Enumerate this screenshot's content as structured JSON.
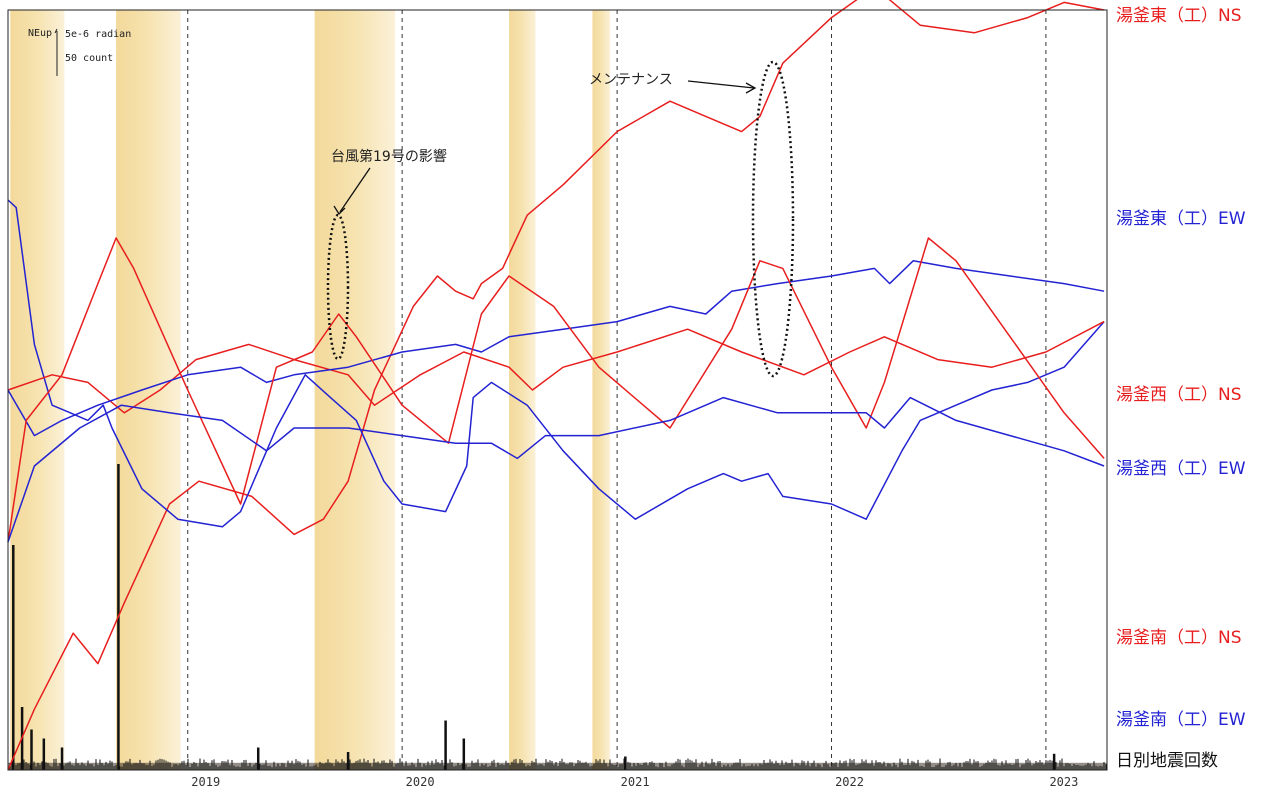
{
  "chart_data": {
    "type": "line",
    "title": "",
    "x_range": [
      "2018-03-01",
      "2023-04-15"
    ],
    "x_ticks": [
      "2019",
      "2020",
      "2021",
      "2022",
      "2023"
    ],
    "scale_bar": {
      "unit_label": "NEup",
      "tilt_label": "5e-6 radian",
      "count_label": "50 count"
    },
    "shaded_periods": [
      [
        "2018-03-05",
        "2018-06-05"
      ],
      [
        "2018-09-01",
        "2018-12-20"
      ],
      [
        "2019-08-05",
        "2019-12-20"
      ],
      [
        "2020-07-01",
        "2020-08-15"
      ],
      [
        "2020-11-20",
        "2020-12-20"
      ]
    ],
    "annotations": [
      {
        "text": "台風第19号の影響",
        "target": "2019-10-12"
      },
      {
        "text": "メンテナンス",
        "target": "2021-09-25"
      }
    ],
    "series": [
      {
        "name": "湯釜東（工）NS",
        "color": "#e81e1e",
        "points": [
          [
            "2018-03-01",
            0.0
          ],
          [
            "2018-04-15",
            0.08
          ],
          [
            "2018-06-20",
            0.18
          ],
          [
            "2018-08-01",
            0.14
          ],
          [
            "2018-09-15",
            0.22
          ],
          [
            "2018-12-01",
            0.35
          ],
          [
            "2019-01-20",
            0.38
          ],
          [
            "2019-04-20",
            0.36
          ],
          [
            "2019-07-01",
            0.31
          ],
          [
            "2019-08-20",
            0.33
          ],
          [
            "2019-10-01",
            0.38
          ],
          [
            "2019-11-15",
            0.5
          ],
          [
            "2020-01-20",
            0.61
          ],
          [
            "2020-03-01",
            0.65
          ],
          [
            "2020-04-01",
            0.63
          ],
          [
            "2020-05-01",
            0.62
          ],
          [
            "2020-05-15",
            0.64
          ],
          [
            "2020-06-20",
            0.66
          ],
          [
            "2020-08-01",
            0.73
          ],
          [
            "2020-10-01",
            0.77
          ],
          [
            "2021-01-01",
            0.84
          ],
          [
            "2021-04-01",
            0.88
          ],
          [
            "2021-06-01",
            0.86
          ],
          [
            "2021-08-01",
            0.84
          ],
          [
            "2021-09-01",
            0.86
          ],
          [
            "2021-10-10",
            0.93
          ],
          [
            "2022-01-01",
            0.99
          ],
          [
            "2022-03-15",
            1.03
          ],
          [
            "2022-06-01",
            0.98
          ],
          [
            "2022-09-01",
            0.97
          ],
          [
            "2022-12-01",
            0.99
          ],
          [
            "2023-02-01",
            1.01
          ],
          [
            "2023-04-10",
            1.0
          ]
        ]
      },
      {
        "name": "湯釜東（工）EW",
        "color": "#2323d3",
        "points": [
          [
            "2018-03-01",
            0.75
          ],
          [
            "2018-03-15",
            0.74
          ],
          [
            "2018-04-15",
            0.56
          ],
          [
            "2018-05-15",
            0.48
          ],
          [
            "2018-06-15",
            0.47
          ],
          [
            "2018-07-15",
            0.46
          ],
          [
            "2018-08-10",
            0.48
          ],
          [
            "2018-08-25",
            0.45
          ],
          [
            "2018-10-15",
            0.37
          ],
          [
            "2018-12-15",
            0.33
          ],
          [
            "2019-03-01",
            0.32
          ],
          [
            "2019-04-01",
            0.34
          ],
          [
            "2019-06-01",
            0.45
          ],
          [
            "2019-07-20",
            0.52
          ],
          [
            "2019-09-01",
            0.49
          ],
          [
            "2019-10-15",
            0.46
          ],
          [
            "2019-12-01",
            0.38
          ],
          [
            "2020-01-01",
            0.35
          ],
          [
            "2020-03-15",
            0.34
          ],
          [
            "2020-04-20",
            0.4
          ],
          [
            "2020-05-01",
            0.49
          ],
          [
            "2020-06-01",
            0.51
          ],
          [
            "2020-08-01",
            0.48
          ],
          [
            "2020-10-01",
            0.42
          ],
          [
            "2020-12-01",
            0.37
          ],
          [
            "2021-02-01",
            0.33
          ],
          [
            "2021-05-01",
            0.37
          ],
          [
            "2021-07-01",
            0.39
          ],
          [
            "2021-08-01",
            0.38
          ],
          [
            "2021-09-15",
            0.39
          ],
          [
            "2021-10-10",
            0.36
          ],
          [
            "2022-01-01",
            0.35
          ],
          [
            "2022-03-01",
            0.33
          ],
          [
            "2022-05-01",
            0.42
          ],
          [
            "2022-06-01",
            0.46
          ],
          [
            "2022-08-01",
            0.48
          ],
          [
            "2022-10-01",
            0.5
          ],
          [
            "2022-12-01",
            0.51
          ],
          [
            "2023-02-01",
            0.53
          ],
          [
            "2023-04-10",
            0.59
          ]
        ]
      },
      {
        "name": "湯釜西（工）NS",
        "color": "#e81e1e",
        "points": [
          [
            "2018-03-01",
            0.5
          ],
          [
            "2018-05-15",
            0.52
          ],
          [
            "2018-07-15",
            0.51
          ],
          [
            "2018-09-15",
            0.47
          ],
          [
            "2018-11-15",
            0.5
          ],
          [
            "2019-01-15",
            0.54
          ],
          [
            "2019-04-15",
            0.56
          ],
          [
            "2019-07-01",
            0.54
          ],
          [
            "2019-10-01",
            0.52
          ],
          [
            "2019-11-15",
            0.48
          ],
          [
            "2020-02-01",
            0.52
          ],
          [
            "2020-04-15",
            0.55
          ],
          [
            "2020-07-01",
            0.53
          ],
          [
            "2020-08-10",
            0.5
          ],
          [
            "2020-10-01",
            0.53
          ],
          [
            "2021-01-01",
            0.55
          ],
          [
            "2021-05-01",
            0.58
          ],
          [
            "2021-08-01",
            0.55
          ],
          [
            "2021-11-15",
            0.52
          ],
          [
            "2022-02-01",
            0.55
          ],
          [
            "2022-04-01",
            0.57
          ],
          [
            "2022-07-01",
            0.54
          ],
          [
            "2022-10-01",
            0.53
          ],
          [
            "2023-01-01",
            0.55
          ],
          [
            "2023-04-10",
            0.59
          ]
        ]
      },
      {
        "name": "湯釜西（工）EW",
        "color": "#2323d3",
        "points": [
          [
            "2018-03-01",
            0.5
          ],
          [
            "2018-04-15",
            0.44
          ],
          [
            "2018-06-01",
            0.46
          ],
          [
            "2018-08-01",
            0.48
          ],
          [
            "2018-10-15",
            0.5
          ],
          [
            "2019-01-01",
            0.52
          ],
          [
            "2019-04-01",
            0.53
          ],
          [
            "2019-05-15",
            0.51
          ],
          [
            "2019-07-01",
            0.52
          ],
          [
            "2019-10-01",
            0.53
          ],
          [
            "2020-01-01",
            0.55
          ],
          [
            "2020-04-01",
            0.56
          ],
          [
            "2020-05-15",
            0.55
          ],
          [
            "2020-07-01",
            0.57
          ],
          [
            "2020-10-01",
            0.58
          ],
          [
            "2021-01-01",
            0.59
          ],
          [
            "2021-04-01",
            0.61
          ],
          [
            "2021-06-01",
            0.6
          ],
          [
            "2021-07-15",
            0.63
          ],
          [
            "2021-10-01",
            0.64
          ],
          [
            "2022-01-01",
            0.65
          ],
          [
            "2022-03-15",
            0.66
          ],
          [
            "2022-04-10",
            0.64
          ],
          [
            "2022-05-20",
            0.67
          ],
          [
            "2022-08-01",
            0.66
          ],
          [
            "2022-11-01",
            0.65
          ],
          [
            "2023-02-01",
            0.64
          ],
          [
            "2023-04-10",
            0.63
          ]
        ]
      },
      {
        "name": "湯釜南（工）NS",
        "color": "#e81e1e",
        "points": [
          [
            "2018-03-01",
            0.3
          ],
          [
            "2018-04-01",
            0.46
          ],
          [
            "2018-06-01",
            0.52
          ],
          [
            "2018-08-01",
            0.64
          ],
          [
            "2018-09-01",
            0.7
          ],
          [
            "2018-10-01",
            0.66
          ],
          [
            "2019-01-01",
            0.5
          ],
          [
            "2019-04-01",
            0.35
          ],
          [
            "2019-06-01",
            0.53
          ],
          [
            "2019-08-01",
            0.55
          ],
          [
            "2019-09-15",
            0.6
          ],
          [
            "2019-10-15",
            0.57
          ],
          [
            "2020-01-01",
            0.48
          ],
          [
            "2020-03-20",
            0.43
          ],
          [
            "2020-05-15",
            0.6
          ],
          [
            "2020-07-01",
            0.65
          ],
          [
            "2020-09-15",
            0.61
          ],
          [
            "2020-12-01",
            0.53
          ],
          [
            "2021-04-01",
            0.45
          ],
          [
            "2021-07-15",
            0.58
          ],
          [
            "2021-09-01",
            0.67
          ],
          [
            "2021-10-10",
            0.66
          ],
          [
            "2022-01-01",
            0.53
          ],
          [
            "2022-03-01",
            0.45
          ],
          [
            "2022-04-01",
            0.51
          ],
          [
            "2022-06-15",
            0.7
          ],
          [
            "2022-08-01",
            0.67
          ],
          [
            "2022-11-01",
            0.57
          ],
          [
            "2023-02-01",
            0.47
          ],
          [
            "2023-04-10",
            0.41
          ]
        ]
      },
      {
        "name": "湯釜南（工）EW",
        "color": "#2323d3",
        "points": [
          [
            "2018-03-01",
            0.3
          ],
          [
            "2018-04-15",
            0.4
          ],
          [
            "2018-07-01",
            0.45
          ],
          [
            "2018-09-10",
            0.48
          ],
          [
            "2018-12-01",
            0.47
          ],
          [
            "2019-03-01",
            0.46
          ],
          [
            "2019-05-15",
            0.42
          ],
          [
            "2019-07-01",
            0.45
          ],
          [
            "2019-10-01",
            0.45
          ],
          [
            "2020-01-01",
            0.44
          ],
          [
            "2020-04-01",
            0.43
          ],
          [
            "2020-06-01",
            0.43
          ],
          [
            "2020-07-15",
            0.41
          ],
          [
            "2020-09-01",
            0.44
          ],
          [
            "2020-12-01",
            0.44
          ],
          [
            "2021-04-01",
            0.46
          ],
          [
            "2021-07-01",
            0.49
          ],
          [
            "2021-10-01",
            0.47
          ],
          [
            "2022-01-01",
            0.47
          ],
          [
            "2022-03-01",
            0.47
          ],
          [
            "2022-04-01",
            0.45
          ],
          [
            "2022-05-15",
            0.49
          ],
          [
            "2022-08-01",
            0.46
          ],
          [
            "2022-11-01",
            0.44
          ],
          [
            "2023-02-01",
            0.42
          ],
          [
            "2023-04-10",
            0.4
          ]
        ]
      }
    ],
    "earthquake_counts": {
      "name": "日別地震回数",
      "color": "#111111",
      "spikes": [
        [
          "2018-03-10",
          250
        ],
        [
          "2018-03-25",
          70
        ],
        [
          "2018-04-10",
          45
        ],
        [
          "2018-05-01",
          35
        ],
        [
          "2018-06-01",
          25
        ],
        [
          "2018-09-05",
          340
        ],
        [
          "2019-05-01",
          25
        ],
        [
          "2019-10-01",
          20
        ],
        [
          "2020-03-15",
          55
        ],
        [
          "2020-04-15",
          35
        ],
        [
          "2021-01-15",
          15
        ],
        [
          "2023-01-15",
          18
        ]
      ],
      "baseline": 8
    }
  }
}
